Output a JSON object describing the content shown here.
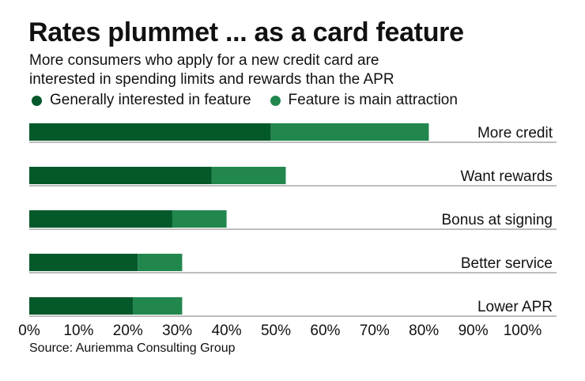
{
  "title": "Rates plummet ... as a card feature",
  "subtitle_lines": [
    "More consumers who apply for a new credit card are",
    "interested in spending limits and rewards than the APR"
  ],
  "source": "Source: Auriemma Consulting Group",
  "colors": {
    "general": "#03592a",
    "main": "#22874d",
    "grid": "#bdbdbd"
  },
  "chart_data": {
    "type": "bar",
    "orientation": "horizontal",
    "stacked": true,
    "categories": [
      "More credit",
      "Want rewards",
      "Bonus at signing",
      "Better service",
      "Lower APR"
    ],
    "series": [
      {
        "name": "Generally interested in feature",
        "values": [
          49,
          37,
          29,
          22,
          21
        ]
      },
      {
        "name": "Feature is main attraction",
        "values": [
          32,
          15,
          11,
          9,
          10
        ]
      }
    ],
    "xlim": [
      0,
      100
    ],
    "xticks": [
      "0%",
      "10%",
      "20%",
      "30%",
      "40%",
      "50%",
      "60%",
      "70%",
      "80%",
      "90%",
      "100%"
    ],
    "legend": "top-left"
  }
}
